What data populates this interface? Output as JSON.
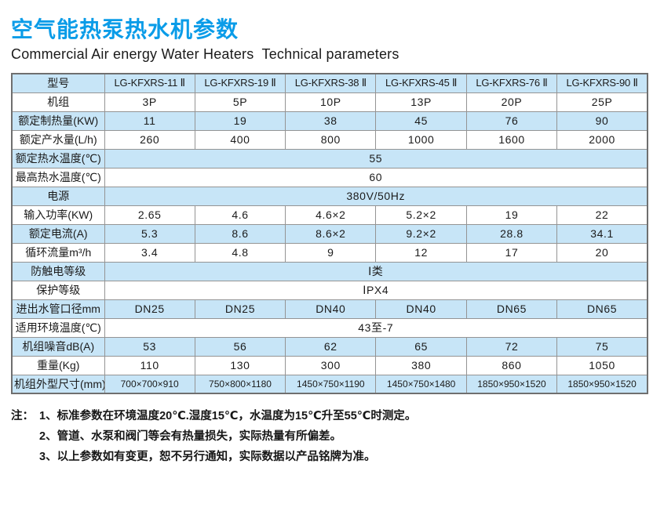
{
  "page": {
    "title": "空气能热泵热水机参数",
    "subtitle": "Commercial Air energy Water Heaters  Technical parameters"
  },
  "colors": {
    "title_blue": "#0a9ce8",
    "row_shade_blue": "#c7e5f7",
    "border_inner": "#949494",
    "border_outer": "#6f6f6f",
    "text": "#1b1b1b"
  },
  "table": {
    "rows": [
      {
        "label": "型号",
        "header": true,
        "cells": [
          "LG-KFXRS-11 Ⅱ",
          "LG-KFXRS-19 Ⅱ",
          "LG-KFXRS-38 Ⅱ",
          "LG-KFXRS-45 Ⅱ",
          "LG-KFXRS-76 Ⅱ",
          "LG-KFXRS-90 Ⅱ"
        ]
      },
      {
        "label": "机组",
        "cells": [
          "3P",
          "5P",
          "10P",
          "13P",
          "20P",
          "25P"
        ]
      },
      {
        "label": "额定制热量(KW)",
        "cells": [
          "11",
          "19",
          "38",
          "45",
          "76",
          "90"
        ]
      },
      {
        "label": "额定产水量(L/h)",
        "cells": [
          "260",
          "400",
          "800",
          "1000",
          "1600",
          "2000"
        ]
      },
      {
        "label": "额定热水温度(℃)",
        "span": "55"
      },
      {
        "label": "最高热水温度(℃)",
        "span": "60"
      },
      {
        "label": "电源",
        "span": "380V/50Hz"
      },
      {
        "label": "输入功率(KW)",
        "cells": [
          "2.65",
          "4.6",
          "4.6×2",
          "5.2×2",
          "19",
          "22"
        ]
      },
      {
        "label": "额定电流(A)",
        "cells": [
          "5.3",
          "8.6",
          "8.6×2",
          "9.2×2",
          "28.8",
          "34.1"
        ]
      },
      {
        "label": "循环流量m³/h",
        "cells": [
          "3.4",
          "4.8",
          "9",
          "12",
          "17",
          "20"
        ]
      },
      {
        "label": "防触电等级",
        "span": "Ⅰ类"
      },
      {
        "label": "保护等级",
        "span": "ⅠPX4"
      },
      {
        "label": "进出水管口径mm",
        "cells": [
          "DN25",
          "DN25",
          "DN40",
          "DN40",
          "DN65",
          "DN65"
        ]
      },
      {
        "label": "适用环境温度(℃)",
        "span": "43至-7"
      },
      {
        "label": "机组噪音dB(A)",
        "cells": [
          "53",
          "56",
          "62",
          "65",
          "72",
          "75"
        ]
      },
      {
        "label": "重量(Kg)",
        "cells": [
          "110",
          "130",
          "300",
          "380",
          "860",
          "1050"
        ]
      },
      {
        "label": "机组外型尺寸(mm)",
        "dims": true,
        "cells": [
          "700×700×910",
          "750×800×1180",
          "1450×750×1190",
          "1450×750×1480",
          "1850×950×1520",
          "1850×950×1520"
        ]
      }
    ]
  },
  "notes": {
    "prefix": "注：",
    "items": [
      "1、标准参数在环境温度20℃.湿度15℃，水温度为15℃升至55℃时测定。",
      "2、管道、水泵和阀门等会有热量损失，实际热量有所偏差。",
      "3、以上参数如有变更，恕不另行通知，实际数据以产品铭牌为准。"
    ]
  }
}
